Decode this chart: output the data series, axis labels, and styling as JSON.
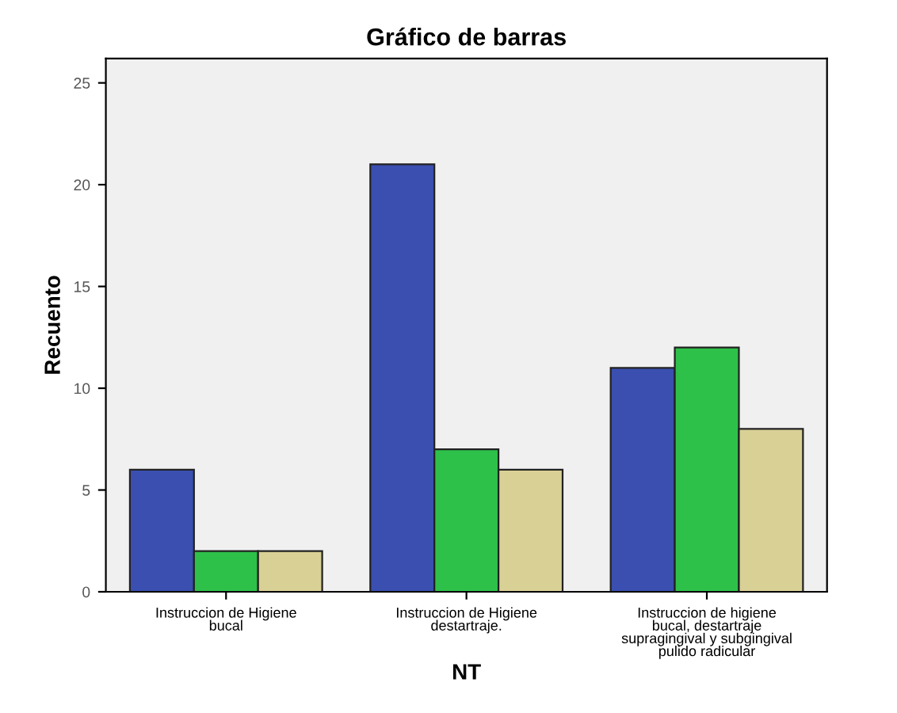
{
  "chart_data": {
    "type": "bar",
    "title": "Gráfico de barras",
    "xlabel": "NT",
    "ylabel": "Recuento",
    "categories": [
      "Instruccion de Higiene\nbucal",
      "Instruccion de Higiene\ndestartraje.",
      "Instruccion de higiene\nbucal, destartraje\nsupragingival y subgingival\npulido radicular"
    ],
    "series": [
      {
        "color": "#3a4fb0",
        "values": [
          6,
          21,
          11
        ]
      },
      {
        "color": "#2ec14a",
        "values": [
          2,
          7,
          12
        ]
      },
      {
        "color": "#d8d095",
        "values": [
          2,
          6,
          8
        ]
      }
    ],
    "ylim": [
      0,
      26.2
    ],
    "yticks": [
      0,
      5,
      10,
      15,
      20,
      25
    ],
    "grid": false
  }
}
